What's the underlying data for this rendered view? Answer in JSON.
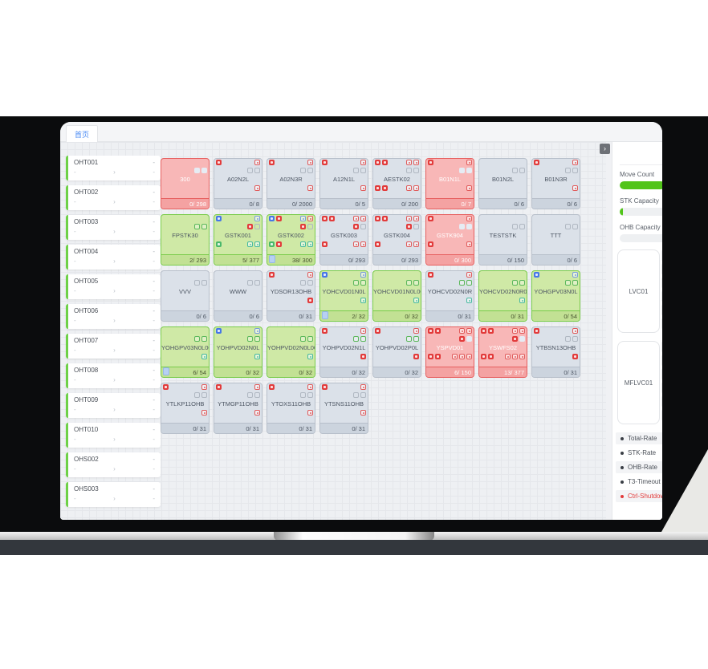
{
  "colors": {
    "accent_blue": "#4b8bf4",
    "status_green": "#52c41a",
    "status_red": "#e23b3b",
    "card_normal_bg": "#dbe1e9",
    "card_green_bg": "#cfe9a6",
    "card_red_bg": "#f8b7b7"
  },
  "tab_label": "首页",
  "collapse_button_glyph": "›",
  "left_panel": {
    "dash": "-",
    "chevron": "›",
    "items": [
      "OHT001",
      "OHT002",
      "OHT003",
      "OHT004",
      "OHT005",
      "OHT006",
      "OHT007",
      "OHT008",
      "OHT009",
      "OHT010",
      "OHS002",
      "OHS003"
    ]
  },
  "grid": {
    "rows": [
      [
        {
          "name": "300",
          "type": "red",
          "foot": "0/ 298",
          "br": [
            "slot-light",
            "slot-light"
          ]
        },
        {
          "name": "A02N2L",
          "type": "normal",
          "foot": "0/ 8",
          "al": [
            "alarm-red"
          ],
          "ar": [
            "alarm-red-outline"
          ],
          "br": [
            "slot-gray-outline",
            "slot-gray-outline"
          ],
          "cr": [
            "alarm-red-outline"
          ]
        },
        {
          "name": "A02N3R",
          "type": "normal",
          "foot": "0/ 2000",
          "al": [
            "alarm-red"
          ],
          "ar": [
            "alarm-red-outline"
          ],
          "br": [
            "slot-gray-outline",
            "slot-gray-outline"
          ],
          "cr": [
            "alarm-red-outline"
          ]
        },
        {
          "name": "A12N1L",
          "type": "normal",
          "foot": "0/ 5",
          "al": [
            "alarm-red"
          ],
          "ar": [
            "alarm-red-outline"
          ],
          "br": [
            "slot-gray-outline",
            "slot-gray-outline"
          ],
          "cr": [
            "alarm-red-outline"
          ]
        },
        {
          "name": "AESTK02",
          "type": "normal",
          "foot": "0/ 200",
          "al": [
            "alarm-red",
            "alarm-red"
          ],
          "ar": [
            "alarm-red-outline",
            "alarm-red-outline"
          ],
          "br": [
            "slot-gray-outline",
            "slot-gray-outline"
          ],
          "cl": [
            "alarm-red",
            "alarm-red"
          ],
          "cr": [
            "alarm-red-outline",
            "alarm-red-outline"
          ]
        },
        {
          "name": "B01N1L",
          "type": "red",
          "foot": "0/ 7",
          "al": [
            "alarm-red"
          ],
          "ar": [
            "alarm-red-outline"
          ],
          "br": [
            "slot-light",
            "slot-light"
          ],
          "cr": [
            "alarm-red-outline"
          ]
        },
        {
          "name": "B01N2L",
          "type": "normal",
          "foot": "0/ 6",
          "br": [
            "slot-gray-outline",
            "slot-gray-outline"
          ]
        },
        {
          "name": "B01N3R",
          "type": "normal",
          "foot": "0/ 6",
          "al": [
            "alarm-red"
          ],
          "ar": [
            "alarm-red-outline"
          ],
          "br": [
            "slot-gray-outline",
            "slot-gray-outline"
          ],
          "cr": [
            "alarm-red-outline"
          ]
        }
      ],
      [
        {
          "name": "FPSTK30",
          "type": "green",
          "foot": "2/ 293",
          "br": [
            "slot-green-outline",
            "slot-green-outline"
          ]
        },
        {
          "name": "GSTK001",
          "type": "green",
          "foot": "5/ 377",
          "al": [
            "info-blue"
          ],
          "ar": [
            "info-blue-outline"
          ],
          "br": [
            "alarm-red",
            "slot-gray-outline"
          ],
          "cl": [
            "ok-green"
          ],
          "cr": [
            "port-teal-outline",
            "port-teal-outline"
          ]
        },
        {
          "name": "GSTK002",
          "type": "green",
          "foot": "38/ 300",
          "chip": true,
          "al": [
            "info-blue",
            "alarm-red"
          ],
          "ar": [
            "info-blue-outline",
            "alarm-red-outline"
          ],
          "br": [
            "alarm-red",
            "slot-gray-outline"
          ],
          "cl": [
            "ok-green",
            "alarm-red"
          ],
          "cr": [
            "port-teal-outline",
            "port-teal-outline"
          ]
        },
        {
          "name": "GSTK003",
          "type": "normal",
          "foot": "0/ 293",
          "al": [
            "alarm-red",
            "alarm-red"
          ],
          "ar": [
            "alarm-red-outline",
            "alarm-red-outline"
          ],
          "br": [
            "alarm-red",
            "slot-gray-outline"
          ],
          "cl": [
            "alarm-red"
          ],
          "cr": [
            "alarm-red-outline",
            "alarm-red-outline"
          ]
        },
        {
          "name": "GSTK004",
          "type": "normal",
          "foot": "0/ 293",
          "al": [
            "alarm-red",
            "alarm-red"
          ],
          "ar": [
            "alarm-red-outline",
            "alarm-red-outline"
          ],
          "br": [
            "alarm-red",
            "slot-gray-outline"
          ],
          "cl": [
            "alarm-red"
          ],
          "cr": [
            "alarm-red-outline",
            "alarm-red-outline"
          ]
        },
        {
          "name": "GSTK904",
          "type": "red",
          "foot": "0/ 300",
          "al": [
            "alarm-red"
          ],
          "ar": [
            "alarm-red-outline"
          ],
          "br": [
            "slot-light",
            "slot-light"
          ],
          "cl": [
            "alarm-red"
          ],
          "cr": [
            "alarm-red-outline"
          ]
        },
        {
          "name": "TESTSTK",
          "type": "normal",
          "foot": "0/ 150",
          "br": [
            "slot-gray-outline",
            "slot-gray-outline"
          ]
        },
        {
          "name": "TTT",
          "type": "normal",
          "foot": "0/ 6",
          "br": [
            "slot-gray-outline",
            "slot-gray-outline"
          ]
        }
      ],
      [
        {
          "name": "VVV",
          "type": "normal",
          "foot": "0/ 6",
          "br": [
            "slot-gray-outline",
            "slot-gray-outline"
          ]
        },
        {
          "name": "WWW",
          "type": "normal",
          "foot": "0/ 6",
          "br": [
            "slot-gray-outline",
            "slot-gray-outline"
          ]
        },
        {
          "name": "YDSOR13OHB",
          "type": "normal",
          "foot": "0/ 31",
          "al": [
            "alarm-red"
          ],
          "ar": [
            "alarm-red-outline"
          ],
          "br": [
            "slot-gray-outline",
            "slot-gray-outline"
          ],
          "cr": [
            "alarm-red"
          ]
        },
        {
          "name": "YOHCVD01N0L",
          "type": "green",
          "foot": "2/ 32",
          "chip": true,
          "al": [
            "info-blue"
          ],
          "ar": [
            "info-blue-outline"
          ],
          "br": [
            "slot-green-outline",
            "slot-green-outline"
          ],
          "cr": [
            "port-teal-outline"
          ]
        },
        {
          "name": "YOHCVD01N0L00",
          "type": "green",
          "foot": "0/ 32",
          "br": [
            "slot-green-outline",
            "slot-green-outline"
          ],
          "cr": [
            "port-teal-outline"
          ]
        },
        {
          "name": "YOHCVD02N0R",
          "type": "normal",
          "foot": "0/ 31",
          "al": [
            "alarm-red"
          ],
          "ar": [
            "alarm-red-outline"
          ],
          "br": [
            "slot-green-outline",
            "slot-green-outline"
          ],
          "cr": [
            "port-teal-outline"
          ]
        },
        {
          "name": "YOHCVD02N0R00",
          "type": "green",
          "foot": "0/ 31",
          "br": [
            "slot-green-outline",
            "slot-green-outline"
          ],
          "cr": [
            "port-teal-outline"
          ]
        },
        {
          "name": "YOHGPV03N0L",
          "type": "green",
          "foot": "0/ 54",
          "al": [
            "info-blue"
          ],
          "ar": [
            "info-blue-outline"
          ],
          "br": [
            "slot-green-outline",
            "slot-green-outline"
          ]
        }
      ],
      [
        {
          "name": "YOHGPV03N0L00",
          "type": "green",
          "foot": "6/ 54",
          "chip": true,
          "br": [
            "slot-green-outline",
            "slot-green-outline"
          ],
          "cr": [
            "port-teal-outline"
          ]
        },
        {
          "name": "YOHPVD02N0L",
          "type": "green",
          "foot": "0/ 32",
          "al": [
            "info-blue"
          ],
          "ar": [
            "info-blue-outline"
          ],
          "br": [
            "slot-green-outline",
            "slot-green-outline"
          ],
          "cr": [
            "port-teal-outline"
          ]
        },
        {
          "name": "YOHPVD02N0L00",
          "type": "green",
          "foot": "0/ 32",
          "br": [
            "slot-green-outline",
            "slot-green-outline"
          ],
          "cr": [
            "port-teal-outline"
          ]
        },
        {
          "name": "YOHPVD02N1L",
          "type": "normal",
          "foot": "0/ 32",
          "al": [
            "alarm-red"
          ],
          "ar": [
            "alarm-red-outline"
          ],
          "br": [
            "slot-green-outline",
            "slot-green-outline"
          ],
          "cr": [
            "alarm-red"
          ]
        },
        {
          "name": "YOHPVD02P0L",
          "type": "normal",
          "foot": "0/ 32",
          "al": [
            "alarm-red"
          ],
          "ar": [
            "alarm-red-outline"
          ],
          "br": [
            "slot-green-outline",
            "slot-green-outline"
          ],
          "cr": [
            "alarm-red"
          ]
        },
        {
          "name": "YSPVD01",
          "type": "red",
          "foot": "6/ 150",
          "al": [
            "alarm-red",
            "alarm-red"
          ],
          "ar": [
            "alarm-red-outline",
            "alarm-red-outline"
          ],
          "br": [
            "alarm-red",
            "slot-light"
          ],
          "cl": [
            "alarm-red",
            "alarm-red"
          ],
          "cr": [
            "alarm-red-outline",
            "alarm-red-outline",
            "alarm-red-outline"
          ]
        },
        {
          "name": "YSWFS02",
          "type": "red",
          "foot": "13/ 377",
          "al": [
            "alarm-red",
            "alarm-red"
          ],
          "ar": [
            "alarm-red-outline",
            "alarm-red-outline"
          ],
          "br": [
            "alarm-red",
            "slot-light"
          ],
          "cl": [
            "alarm-red",
            "alarm-red"
          ],
          "cr": [
            "alarm-red-outline",
            "alarm-red-outline",
            "alarm-red-outline"
          ]
        },
        {
          "name": "YTBSN13OHB",
          "type": "normal",
          "foot": "0/ 31",
          "al": [
            "alarm-red"
          ],
          "ar": [
            "alarm-red-outline"
          ],
          "br": [
            "slot-gray-outline",
            "slot-gray-outline"
          ],
          "cr": [
            "alarm-red"
          ]
        }
      ],
      [
        {
          "name": "YTLKP11OHB",
          "type": "normal",
          "foot": "0/ 31",
          "al": [
            "alarm-red"
          ],
          "ar": [
            "alarm-red-outline"
          ],
          "br": [
            "slot-gray-outline",
            "slot-gray-outline"
          ],
          "cr": [
            "alarm-red-outline"
          ]
        },
        {
          "name": "YTMGP11OHB",
          "type": "normal",
          "foot": "0/ 31",
          "al": [
            "alarm-red"
          ],
          "ar": [
            "alarm-red-outline"
          ],
          "br": [
            "slot-gray-outline",
            "slot-gray-outline"
          ],
          "cr": [
            "alarm-red-outline"
          ]
        },
        {
          "name": "YTOXS11OHB",
          "type": "normal",
          "foot": "0/ 31",
          "al": [
            "alarm-red"
          ],
          "ar": [
            "alarm-red-outline"
          ],
          "br": [
            "slot-gray-outline",
            "slot-gray-outline"
          ],
          "cr": [
            "alarm-red-outline"
          ]
        },
        {
          "name": "YTSNS11OHB",
          "type": "normal",
          "foot": "0/ 31",
          "al": [
            "alarm-red"
          ],
          "ar": [
            "alarm-red-outline"
          ],
          "br": [
            "slot-gray-outline",
            "slot-gray-outline"
          ],
          "cr": [
            "alarm-red-outline"
          ]
        }
      ]
    ]
  },
  "right_panel": {
    "gauges": [
      {
        "label": "Move Count",
        "fill_pct": 40
      },
      {
        "label": "STK Capacity",
        "fill_pct": 3
      },
      {
        "label": "OHB Capacity",
        "fill_pct": 0
      }
    ],
    "vehicle_boxes": [
      {
        "label": "LVC01",
        "rows": 6
      },
      {
        "label": "MFLVC01",
        "rows": 6
      }
    ],
    "legend": [
      {
        "label": "Total-Rate",
        "shaded": true,
        "red": false
      },
      {
        "label": "STK-Rate",
        "shaded": false,
        "red": false
      },
      {
        "label": "OHB-Rate",
        "shaded": true,
        "red": false
      },
      {
        "label": "T3-Timeout",
        "shaded": false,
        "red": false
      },
      {
        "label": "Ctrl-Shutdown",
        "shaded": true,
        "red": true
      }
    ]
  }
}
